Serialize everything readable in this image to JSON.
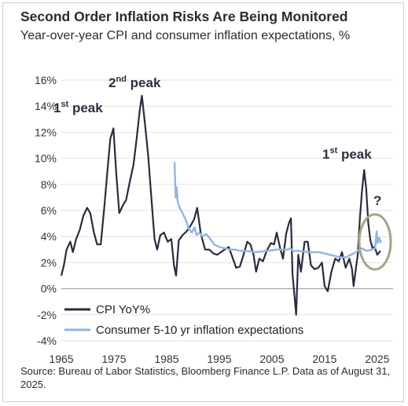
{
  "header": {
    "title": "Second Order Inflation Risks Are Being Monitored",
    "subtitle": "Year-over-year CPI and consumer inflation expectations, %"
  },
  "footer": {
    "source": "Source: Bureau of Labor Statistics, Bloomberg Finance L.P. Data as of August 31, 2025."
  },
  "colors": {
    "cpi": "#2b2b3f",
    "expectations": "#8fb6e0",
    "circle": "#a8a489"
  },
  "chart_data": {
    "type": "line",
    "title": "Second Order Inflation Risks Are Being Monitored",
    "ylabel": "%",
    "xlim": [
      1965,
      2028
    ],
    "ylim": [
      -4,
      16
    ],
    "xticks": [
      1965,
      1975,
      1985,
      1995,
      2005,
      2015,
      2025
    ],
    "yticks": [
      -4,
      -2,
      0,
      2,
      4,
      6,
      8,
      10,
      12,
      14,
      16
    ],
    "ytick_labels": [
      "-4%",
      "-2%",
      "0%",
      "2%",
      "4%",
      "6%",
      "8%",
      "10%",
      "12%",
      "14%",
      "16%"
    ],
    "legend_position": "bottom-left",
    "series": [
      {
        "name": "CPI  YoY%",
        "x": [
          1965,
          1965.5,
          1966,
          1966.7,
          1967.2,
          1967.8,
          1968.5,
          1969.2,
          1969.9,
          1970.5,
          1971.2,
          1971.8,
          1972.5,
          1973.2,
          1973.8,
          1974.3,
          1974.9,
          1975.4,
          1976,
          1976.7,
          1977.3,
          1978,
          1978.7,
          1979.3,
          1979.9,
          1980.3,
          1980.9,
          1981.5,
          1982.1,
          1982.7,
          1983.2,
          1983.8,
          1984.5,
          1985.2,
          1985.9,
          1986.4,
          1986.8,
          1987.3,
          1988,
          1988.8,
          1989.5,
          1990.2,
          1990.8,
          1991.5,
          1992.3,
          1993.1,
          1993.9,
          1994.6,
          1995.3,
          1996,
          1996.8,
          1997.5,
          1998.2,
          1998.9,
          1999.6,
          2000.3,
          2000.9,
          2001.5,
          2002,
          2002.6,
          2003.3,
          2004,
          2004.8,
          2005.4,
          2005.9,
          2006.5,
          2007.1,
          2007.7,
          2008.2,
          2008.6,
          2008.9,
          2009.2,
          2009.6,
          2010,
          2010.5,
          2011.2,
          2011.8,
          2012.4,
          2013.1,
          2013.8,
          2014.5,
          2015,
          2015.6,
          2016.3,
          2017,
          2017.7,
          2018.3,
          2019,
          2019.7,
          2020.2,
          2020.5,
          2020.9,
          2021.3,
          2021.7,
          2022.1,
          2022.5,
          2022.9,
          2023.3,
          2023.7,
          2024.1,
          2024.5,
          2025,
          2025.6
        ],
        "values": [
          1,
          1.8,
          3,
          3.6,
          2.8,
          3.8,
          4.5,
          5.6,
          6.2,
          5.8,
          4.3,
          3.4,
          3.4,
          6.4,
          9.2,
          11.5,
          12.3,
          9,
          5.8,
          6.4,
          6.8,
          8.2,
          9.5,
          11.5,
          13.7,
          14.8,
          12.6,
          10.2,
          7,
          3.8,
          3,
          4.1,
          4.3,
          3.6,
          3.8,
          1.8,
          1,
          3.7,
          4.1,
          4.4,
          4.8,
          5.3,
          6.2,
          4.2,
          3,
          3,
          2.7,
          2.6,
          2.8,
          3,
          3.2,
          2.4,
          1.6,
          1.7,
          2.6,
          3.6,
          3.4,
          2.6,
          1.3,
          2.3,
          2.1,
          2.9,
          3.5,
          3.4,
          4.3,
          3.2,
          2.3,
          4.2,
          5,
          5.4,
          1.1,
          -0.2,
          -2,
          2.6,
          1.3,
          3.6,
          3.6,
          1.8,
          1.5,
          1.6,
          2,
          0.2,
          -0.2,
          1.3,
          2.3,
          2.1,
          2.8,
          1.6,
          2.3,
          1.5,
          0.2,
          1.4,
          2.6,
          5.4,
          7.5,
          9.1,
          7.7,
          5,
          3.7,
          3.1,
          3.2,
          2.6,
          2.9
        ]
      },
      {
        "name": "Consumer 5-10 yr inflation expectations",
        "x": [
          1986.5,
          1986.7,
          1986.9,
          1987.1,
          1987.5,
          1988,
          1988.6,
          1989.2,
          1989.8,
          1990.3,
          1990.7,
          1991.2,
          1991.8,
          1992.5,
          1993.3,
          1994,
          1995,
          1996,
          1997,
          1998,
          1999,
          2000,
          2002,
          2004,
          2006,
          2008,
          2008.5,
          2009,
          2010,
          2012,
          2014,
          2016,
          2017,
          2018,
          2019,
          2020,
          2021,
          2021.5,
          2022,
          2023,
          2024,
          2024.6,
          2024.9,
          2025.1,
          2025.4,
          2025.7
        ],
        "values": [
          9.7,
          7,
          7.8,
          6.7,
          6.2,
          5.8,
          5.3,
          4.6,
          4.3,
          4.7,
          4.1,
          4.3,
          4,
          4.2,
          3.8,
          3.4,
          3.2,
          3.1,
          3,
          3,
          2.9,
          2.9,
          2.8,
          2.9,
          3,
          3,
          3.1,
          2.9,
          2.9,
          2.8,
          2.8,
          2.6,
          2.5,
          2.4,
          2.4,
          2.6,
          2.8,
          3,
          3.1,
          2.9,
          3,
          3.1,
          4.4,
          3.5,
          3.9,
          3.5
        ]
      }
    ],
    "annotations": [
      {
        "text": "1st peak",
        "base": "1",
        "sup": "st",
        "word": " peak"
      },
      {
        "text": "2nd peak",
        "base": "2",
        "sup": "nd",
        "word": " peak"
      },
      {
        "text": "1st peak",
        "base": "1",
        "sup": "st",
        "word": " peak"
      },
      {
        "text": "?"
      }
    ]
  }
}
